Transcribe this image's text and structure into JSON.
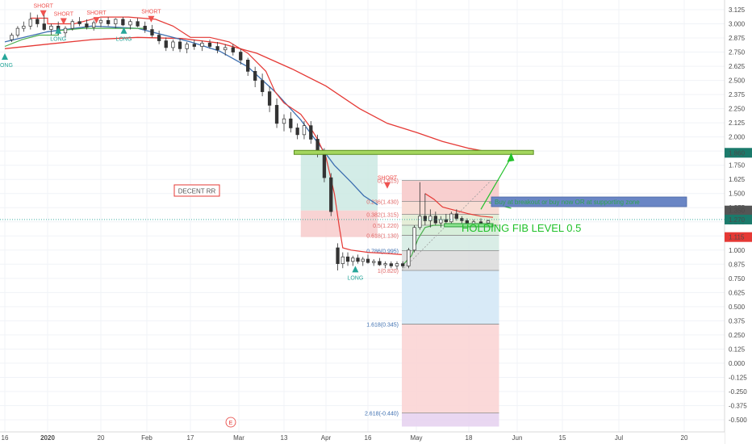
{
  "chart_data": {
    "type": "candlestick",
    "y_axis": {
      "range": [
        -0.56,
        3.2
      ],
      "ticks": [
        "3.125",
        "3.000",
        "2.875",
        "2.750",
        "2.625",
        "2.500",
        "2.375",
        "2.250",
        "2.125",
        "2.000",
        "1.875",
        "1.750",
        "1.625",
        "1.500",
        "1.375",
        "1.250",
        "1.125",
        "1.000",
        "0.875",
        "0.750",
        "0.625",
        "0.500",
        "0.375",
        "0.250",
        "0.125",
        "0.000",
        "-0.125",
        "-0.250",
        "-0.375",
        "-0.500"
      ],
      "tick_values": [
        3.125,
        3.0,
        2.875,
        2.75,
        2.625,
        2.5,
        2.375,
        2.25,
        2.125,
        2.0,
        1.875,
        1.75,
        1.625,
        1.5,
        1.375,
        1.25,
        1.125,
        1.0,
        0.875,
        0.75,
        0.625,
        0.5,
        0.375,
        0.25,
        0.125,
        0.0,
        -0.125,
        -0.25,
        -0.375,
        -0.5
      ]
    },
    "x_axis": {
      "ticks": [
        "16",
        "2020",
        "20",
        "Feb",
        "17",
        "Mar",
        "13",
        "Apr",
        "16",
        "May",
        "18",
        "Jun",
        "15",
        "Jul",
        "20"
      ],
      "tick_bold": [
        false,
        true,
        false,
        false,
        false,
        false,
        false,
        false,
        false,
        false,
        false,
        false,
        false,
        false,
        false
      ]
    },
    "price_labels": [
      {
        "text": "1.860",
        "value": 1.86,
        "color": "#1b7a6b"
      },
      {
        "text": "1.350",
        "value": 1.35,
        "color": "#555555"
      },
      {
        "text": "1.270",
        "value": 1.27,
        "color": "#1b7a6b"
      },
      {
        "text": "1.115",
        "value": 1.115,
        "color": "#e53935"
      }
    ],
    "fib_levels": [
      {
        "label": "0(1.615)",
        "price": 1.615,
        "zone_color": "#f7caca"
      },
      {
        "label": "0.236(1.430)",
        "price": 1.43,
        "zone_color": "#f7d8cf"
      },
      {
        "label": "0.382(1.315)",
        "price": 1.315,
        "zone_color": "#e2ecd4"
      },
      {
        "label": "0.5(1.220)",
        "price": 1.22,
        "zone_color": "#d3ecd6"
      },
      {
        "label": "0.618(1.130)",
        "price": 1.13,
        "zone_color": "#d5ebe3"
      },
      {
        "label": "0.786(0.995)",
        "price": 0.995,
        "zone_color": "#dcdcdc"
      },
      {
        "label": "1(0.820)",
        "price": 0.82,
        "zone_color": "#d4e8f6"
      },
      {
        "label": "1.618(0.345)",
        "price": 0.345,
        "zone_color": "#fbd5d5"
      },
      {
        "label": "2.618(-0.440)",
        "price": -0.44,
        "zone_color": "#e7d3f0"
      }
    ],
    "fib_bottom": -0.56,
    "signals": [
      {
        "type": "SHORT",
        "month": 0.45,
        "price": 3.12
      },
      {
        "type": "SHORT",
        "month": 0.68,
        "price": 3.05
      },
      {
        "type": "SHORT",
        "month": 1.05,
        "price": 3.06
      },
      {
        "type": "SHORT",
        "month": 1.65,
        "price": 3.07
      },
      {
        "type": "LONG",
        "month": 0.0,
        "price": 2.74
      },
      {
        "type": "LONG",
        "month": 0.62,
        "price": 2.97
      },
      {
        "type": "LONG",
        "month": 1.35,
        "price": 2.97
      },
      {
        "type": "LONG",
        "month": 3.95,
        "price": 0.86
      },
      {
        "type": "SHORT",
        "month": 4.3,
        "price": 1.6
      }
    ],
    "candles": [
      [
        0.08,
        2.86,
        2.92,
        2.84,
        2.9
      ],
      [
        0.15,
        2.9,
        2.98,
        2.88,
        2.96
      ],
      [
        0.22,
        2.96,
        3.02,
        2.93,
        2.98
      ],
      [
        0.3,
        2.98,
        3.1,
        2.95,
        3.04
      ],
      [
        0.38,
        3.04,
        3.08,
        2.97,
        3.0
      ],
      [
        0.46,
        3.0,
        3.1,
        2.94,
        2.95
      ],
      [
        0.54,
        2.95,
        3.0,
        2.9,
        2.98
      ],
      [
        0.62,
        2.98,
        3.02,
        2.9,
        2.92
      ],
      [
        0.7,
        2.92,
        2.98,
        2.88,
        2.96
      ],
      [
        0.78,
        2.96,
        3.04,
        2.94,
        3.02
      ],
      [
        0.86,
        3.02,
        3.06,
        2.98,
        3.0
      ],
      [
        0.94,
        3.0,
        3.04,
        2.95,
        2.97
      ],
      [
        1.02,
        2.97,
        3.03,
        2.94,
        3.01
      ],
      [
        1.1,
        3.01,
        3.05,
        2.97,
        3.03
      ],
      [
        1.18,
        3.03,
        3.06,
        2.98,
        3.0
      ],
      [
        1.26,
        3.0,
        3.05,
        2.96,
        3.04
      ],
      [
        1.34,
        3.04,
        3.06,
        2.98,
        2.99
      ],
      [
        1.42,
        2.99,
        3.04,
        2.95,
        3.02
      ],
      [
        1.5,
        3.02,
        3.05,
        2.97,
        2.98
      ],
      [
        1.58,
        2.98,
        3.02,
        2.92,
        2.95
      ],
      [
        1.66,
        2.95,
        2.99,
        2.88,
        2.9
      ],
      [
        1.74,
        2.9,
        2.94,
        2.82,
        2.85
      ],
      [
        1.82,
        2.85,
        2.88,
        2.76,
        2.79
      ],
      [
        1.9,
        2.79,
        2.86,
        2.76,
        2.84
      ],
      [
        1.98,
        2.84,
        2.87,
        2.75,
        2.78
      ],
      [
        2.06,
        2.78,
        2.84,
        2.74,
        2.82
      ],
      [
        2.14,
        2.82,
        2.86,
        2.77,
        2.8
      ],
      [
        2.22,
        2.8,
        2.85,
        2.76,
        2.83
      ],
      [
        2.3,
        2.83,
        2.86,
        2.78,
        2.8
      ],
      [
        2.38,
        2.8,
        2.84,
        2.74,
        2.77
      ],
      [
        2.46,
        2.77,
        2.82,
        2.72,
        2.79
      ],
      [
        2.54,
        2.79,
        2.82,
        2.72,
        2.75
      ],
      [
        2.62,
        2.75,
        2.78,
        2.64,
        2.68
      ],
      [
        2.7,
        2.68,
        2.7,
        2.54,
        2.58
      ],
      [
        2.78,
        2.58,
        2.62,
        2.44,
        2.5
      ],
      [
        2.86,
        2.5,
        2.56,
        2.36,
        2.4
      ],
      [
        2.94,
        2.4,
        2.45,
        2.22,
        2.28
      ],
      [
        3.02,
        2.28,
        2.34,
        2.08,
        2.12
      ],
      [
        3.1,
        2.12,
        2.2,
        2.05,
        2.16
      ],
      [
        3.18,
        2.16,
        2.22,
        2.04,
        2.08
      ],
      [
        3.26,
        2.08,
        2.12,
        1.98,
        2.02
      ],
      [
        3.34,
        2.02,
        2.14,
        1.98,
        2.1
      ],
      [
        3.42,
        2.1,
        2.14,
        1.94,
        1.98
      ],
      [
        3.5,
        1.98,
        2.02,
        1.82,
        1.86
      ],
      [
        3.58,
        1.86,
        1.9,
        1.6,
        1.64
      ],
      [
        3.66,
        1.64,
        1.68,
        1.3,
        1.34
      ],
      [
        3.74,
        1.02,
        1.06,
        0.82,
        0.88
      ],
      [
        3.8,
        0.88,
        0.98,
        0.84,
        0.94
      ],
      [
        3.86,
        0.94,
        0.98,
        0.86,
        0.9
      ],
      [
        3.92,
        0.9,
        0.95,
        0.86,
        0.93
      ],
      [
        3.98,
        0.93,
        0.96,
        0.88,
        0.9
      ],
      [
        4.04,
        0.9,
        0.94,
        0.86,
        0.92
      ],
      [
        4.1,
        0.92,
        0.96,
        0.88,
        0.89
      ],
      [
        4.16,
        0.89,
        0.92,
        0.86,
        0.9
      ],
      [
        4.22,
        0.9,
        0.93,
        0.86,
        0.87
      ],
      [
        4.28,
        0.87,
        0.9,
        0.84,
        0.88
      ],
      [
        4.34,
        0.88,
        0.9,
        0.84,
        0.86
      ],
      [
        4.4,
        0.86,
        0.9,
        0.83,
        0.88
      ],
      [
        4.46,
        0.88,
        0.9,
        0.84,
        0.86
      ],
      [
        4.52,
        0.86,
        1.02,
        0.84,
        1.0
      ],
      [
        4.58,
        1.0,
        1.22,
        0.98,
        1.2
      ],
      [
        4.64,
        1.2,
        1.6,
        1.18,
        1.3
      ],
      [
        4.7,
        1.3,
        1.5,
        1.22,
        1.26
      ],
      [
        4.76,
        1.26,
        1.36,
        1.2,
        1.3
      ],
      [
        4.82,
        1.3,
        1.34,
        1.22,
        1.24
      ],
      [
        4.88,
        1.24,
        1.3,
        1.2,
        1.27
      ],
      [
        4.94,
        1.27,
        1.32,
        1.22,
        1.25
      ],
      [
        5.0,
        1.25,
        1.34,
        1.23,
        1.32
      ],
      [
        5.06,
        1.32,
        1.36,
        1.26,
        1.28
      ],
      [
        5.12,
        1.28,
        1.3,
        1.22,
        1.26
      ],
      [
        5.18,
        1.26,
        1.28,
        1.21,
        1.23
      ],
      [
        5.24,
        1.23,
        1.27,
        1.21,
        1.25
      ],
      [
        5.3,
        1.25,
        1.28,
        1.22,
        1.24
      ],
      [
        5.36,
        1.24,
        1.27,
        1.21,
        1.26
      ]
    ],
    "series": [
      {
        "kind": "ma",
        "color": "#e53935",
        "points": [
          [
            0,
            2.78
          ],
          [
            0.5,
            2.82
          ],
          [
            1.0,
            2.86
          ],
          [
            1.5,
            2.88
          ],
          [
            2.0,
            2.87
          ],
          [
            2.4,
            2.83
          ],
          [
            2.8,
            2.74
          ],
          [
            3.2,
            2.6
          ],
          [
            3.6,
            2.45
          ],
          [
            4.0,
            2.25
          ],
          [
            4.3,
            2.12
          ],
          [
            4.6,
            2.04
          ],
          [
            4.9,
            1.96
          ],
          [
            5.2,
            1.9
          ],
          [
            5.4,
            1.86
          ]
        ]
      },
      {
        "kind": "ma",
        "color": "#3d6fb0",
        "points": [
          [
            0,
            2.84
          ],
          [
            0.5,
            2.93
          ],
          [
            1.0,
            2.98
          ],
          [
            1.5,
            2.96
          ],
          [
            1.8,
            2.9
          ],
          [
            2.1,
            2.84
          ],
          [
            2.4,
            2.76
          ],
          [
            2.7,
            2.62
          ],
          [
            3.0,
            2.4
          ],
          [
            3.3,
            2.15
          ],
          [
            3.5,
            1.95
          ],
          [
            3.7,
            1.75
          ],
          [
            3.9,
            1.6
          ],
          [
            4.05,
            1.48
          ],
          [
            4.2,
            1.4
          ]
        ]
      },
      {
        "kind": "trail",
        "color": "#4caf50",
        "points": [
          [
            0,
            2.8
          ],
          [
            0.2,
            2.86
          ],
          [
            0.4,
            2.9
          ],
          [
            0.6,
            2.9
          ],
          [
            0.62,
            2.9
          ],
          [
            0.62,
            2.94
          ],
          [
            0.9,
            2.96
          ],
          [
            1.2,
            2.96
          ],
          [
            1.35,
            2.96
          ],
          [
            1.5,
            2.96
          ],
          [
            1.6,
            2.96
          ]
        ]
      },
      {
        "kind": "trail",
        "color": "#e53935",
        "points": [
          [
            0.3,
            3.05
          ],
          [
            0.5,
            3.05
          ],
          [
            0.5,
            3.0
          ],
          [
            0.8,
            3.0
          ],
          [
            1.1,
            3.06
          ],
          [
            1.4,
            3.06
          ],
          [
            1.7,
            3.04
          ],
          [
            1.9,
            2.98
          ],
          [
            2.1,
            2.88
          ],
          [
            2.3,
            2.88
          ],
          [
            2.5,
            2.84
          ],
          [
            2.7,
            2.74
          ],
          [
            2.9,
            2.58
          ],
          [
            3.0,
            2.4
          ],
          [
            3.1,
            2.3
          ],
          [
            3.3,
            2.2
          ],
          [
            3.4,
            2.1
          ],
          [
            3.5,
            1.98
          ],
          [
            3.6,
            1.82
          ],
          [
            3.7,
            1.5
          ],
          [
            3.76,
            1.2
          ],
          [
            3.8,
            1.02
          ],
          [
            3.9,
            1.0
          ],
          [
            4.1,
            0.98
          ],
          [
            4.3,
            0.97
          ],
          [
            4.45,
            0.96
          ]
        ]
      },
      {
        "kind": "trail",
        "color": "#4caf50",
        "points": [
          [
            4.45,
            0.86
          ],
          [
            4.55,
            0.95
          ],
          [
            4.62,
            1.1
          ],
          [
            4.7,
            1.2
          ],
          [
            4.8,
            1.22
          ],
          [
            4.9,
            1.22
          ]
        ]
      },
      {
        "kind": "trail",
        "color": "#e53935",
        "points": [
          [
            4.7,
            1.5
          ],
          [
            4.8,
            1.45
          ],
          [
            4.9,
            1.38
          ],
          [
            5.0,
            1.36
          ],
          [
            5.1,
            1.34
          ],
          [
            5.2,
            1.32
          ],
          [
            5.3,
            1.3
          ],
          [
            5.4,
            1.29
          ]
        ]
      }
    ],
    "annotations": [
      {
        "text": "DECENT RR",
        "kind": "boxed"
      },
      {
        "text": "HOLDING FIB LEVEL 0.5",
        "kind": "plain",
        "color": "#21c12a"
      },
      {
        "text": "Buy at breakout or buy now OR at supporting zone",
        "kind": "banner",
        "color": "#2ea44f"
      }
    ],
    "event_marker": "E",
    "resistance_price": 1.86,
    "support_price": 1.22,
    "current_price": 1.27
  }
}
